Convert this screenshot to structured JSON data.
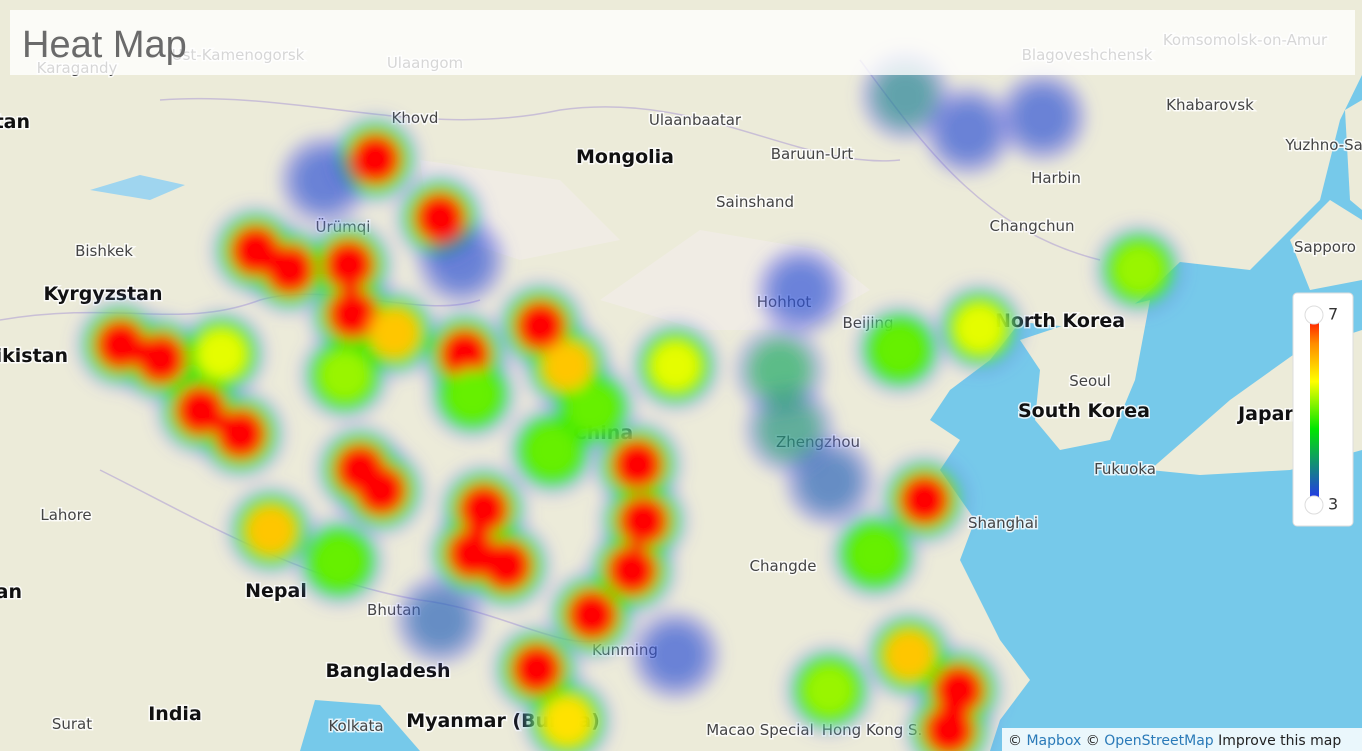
{
  "header": {
    "title": "Heat Map"
  },
  "legend": {
    "max": 7,
    "min": 3
  },
  "map": {
    "places": [
      "Karagandy",
      "Ust-Kamenogorsk",
      "Ulaangom",
      "Blagoveshchensk",
      "Komsomolsk-on-Amur",
      "Kazakhstan",
      "Khovd",
      "Ulaanbaatar",
      "Mongolia",
      "Baruun-Urt",
      "Khabarovsk",
      "Harbin",
      "Sainshand",
      "Changchun",
      "Bishkek",
      "Ürümqi",
      "Kyrgyzstan",
      "Hohhot",
      "Beijing",
      "North Korea",
      "Sapporo",
      "Tajikistan",
      "Seoul",
      "South Korea",
      "Japan",
      "China",
      "Zhengzhou",
      "Fukuoka",
      "Lahore",
      "Shanghai",
      "Changde",
      "Pakistan",
      "Nepal",
      "Bhutan",
      "Kunming",
      "Bangladesh",
      "India",
      "Kolkata",
      "Surat",
      "Myanmar (Burma)",
      "Macao Special",
      "Hong Kong S.",
      "Yuzhno-Sakhalinsk"
    ],
    "points": [
      {
        "lon": 89.3,
        "lat": 46.9,
        "weight": 7
      },
      {
        "lon": 92.7,
        "lat": 44.4,
        "weight": 7
      },
      {
        "lon": 83.0,
        "lat": 43.0,
        "weight": 7
      },
      {
        "lon": 84.8,
        "lat": 42.2,
        "weight": 7
      },
      {
        "lon": 87.9,
        "lat": 42.4,
        "weight": 7
      },
      {
        "lon": 88.1,
        "lat": 40.3,
        "weight": 7
      },
      {
        "lon": 90.3,
        "lat": 39.5,
        "weight": 6
      },
      {
        "lon": 75.9,
        "lat": 39.0,
        "weight": 7
      },
      {
        "lon": 78.0,
        "lat": 38.4,
        "weight": 7
      },
      {
        "lon": 80.1,
        "lat": 36.2,
        "weight": 7
      },
      {
        "lon": 82.2,
        "lat": 35.2,
        "weight": 7
      },
      {
        "lon": 81.2,
        "lat": 38.6,
        "weight": 5.5
      },
      {
        "lon": 94.0,
        "lat": 38.6,
        "weight": 7
      },
      {
        "lon": 98.0,
        "lat": 39.8,
        "weight": 7
      },
      {
        "lon": 99.4,
        "lat": 38.1,
        "weight": 6
      },
      {
        "lon": 105.1,
        "lat": 38.1,
        "weight": 5.5
      },
      {
        "lon": 87.7,
        "lat": 37.7,
        "weight": 5.2
      },
      {
        "lon": 89.6,
        "lat": 32.8,
        "weight": 7
      },
      {
        "lon": 88.5,
        "lat": 33.7,
        "weight": 7
      },
      {
        "lon": 83.8,
        "lat": 31.1,
        "weight": 6
      },
      {
        "lon": 95.0,
        "lat": 32.0,
        "weight": 7
      },
      {
        "lon": 94.4,
        "lat": 30.1,
        "weight": 7
      },
      {
        "lon": 96.2,
        "lat": 29.6,
        "weight": 7
      },
      {
        "lon": 103.1,
        "lat": 33.9,
        "weight": 7
      },
      {
        "lon": 103.4,
        "lat": 31.5,
        "weight": 7
      },
      {
        "lon": 102.8,
        "lat": 29.4,
        "weight": 7
      },
      {
        "lon": 100.7,
        "lat": 27.5,
        "weight": 7
      },
      {
        "lon": 97.8,
        "lat": 25.2,
        "weight": 7
      },
      {
        "lon": 99.4,
        "lat": 23.0,
        "weight": 5.8
      },
      {
        "lon": 94.4,
        "lat": 36.9,
        "weight": 5
      },
      {
        "lon": 98.6,
        "lat": 34.5,
        "weight": 5
      },
      {
        "lon": 87.4,
        "lat": 29.8,
        "weight": 5
      },
      {
        "lon": 100.7,
        "lat": 36.3,
        "weight": 5
      },
      {
        "lon": 129.5,
        "lat": 42.2,
        "weight": 5.2
      },
      {
        "lon": 121.1,
        "lat": 39.7,
        "weight": 5.5
      },
      {
        "lon": 116.9,
        "lat": 38.8,
        "weight": 5
      },
      {
        "lon": 118.2,
        "lat": 32.4,
        "weight": 7
      },
      {
        "lon": 115.6,
        "lat": 30.1,
        "weight": 5
      },
      {
        "lon": 117.4,
        "lat": 25.8,
        "weight": 6
      },
      {
        "lon": 120.0,
        "lat": 24.3,
        "weight": 7
      },
      {
        "lon": 119.5,
        "lat": 22.6,
        "weight": 7
      },
      {
        "lon": 113.2,
        "lat": 24.3,
        "weight": 5.2
      },
      {
        "lon": 110.6,
        "lat": 37.9,
        "weight": 4.2
      },
      {
        "lon": 111.1,
        "lat": 35.4,
        "weight": 4
      },
      {
        "lon": 113.2,
        "lat": 33.2,
        "weight": 3.5
      },
      {
        "lon": 117.2,
        "lat": 49.6,
        "weight": 3.8
      },
      {
        "lon": 120.5,
        "lat": 48.1,
        "weight": 3.3
      },
      {
        "lon": 124.4,
        "lat": 48.7,
        "weight": 3.3
      },
      {
        "lon": 111.7,
        "lat": 41.3,
        "weight": 3.3
      },
      {
        "lon": 93.8,
        "lat": 42.6,
        "weight": 3.3
      },
      {
        "lon": 86.6,
        "lat": 46.0,
        "weight": 3.3
      },
      {
        "lon": 92.7,
        "lat": 27.3,
        "weight": 3.5
      },
      {
        "lon": 105.1,
        "lat": 25.8,
        "weight": 3.3
      }
    ]
  },
  "attribution": {
    "mapbox": "Mapbox",
    "osm": "OpenStreetMap",
    "improve": "Improve this map"
  }
}
